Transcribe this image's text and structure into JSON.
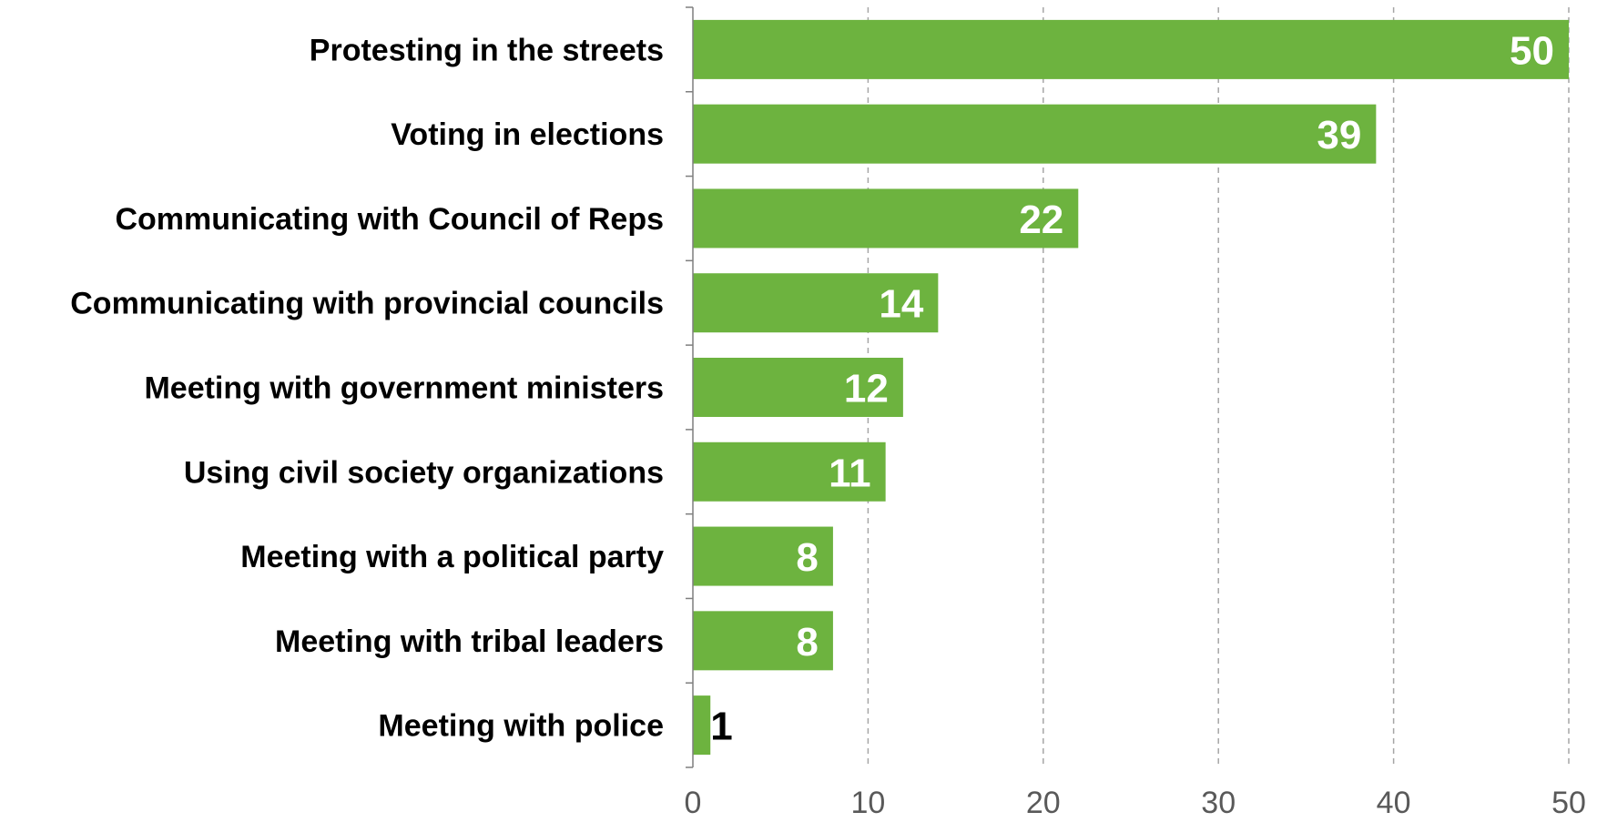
{
  "chart_data": {
    "type": "bar",
    "orientation": "horizontal",
    "categories": [
      "Protesting in the streets",
      "Voting in elections",
      "Communicating with Council of Reps",
      "Communicating with provincial councils",
      "Meeting with government ministers",
      "Using civil society organizations",
      "Meeting with a political party",
      "Meeting with tribal leaders",
      "Meeting with police"
    ],
    "values": [
      50,
      39,
      22,
      14,
      12,
      11,
      8,
      8,
      1
    ],
    "value_labels": [
      "50",
      "39",
      "22",
      "14",
      "12",
      "11",
      "8",
      "8",
      "1"
    ],
    "xlim": [
      0,
      50
    ],
    "xticks": [
      0,
      10,
      20,
      30,
      40,
      50
    ],
    "xtick_labels": [
      "0",
      "10",
      "20",
      "30",
      "40",
      "50"
    ],
    "grid": "vertical dashed",
    "legend": "none",
    "colors": {
      "bar": "#6db33f",
      "label_inside": "#ffffff",
      "label_outside": "#000000",
      "grid": "#a6a6a6",
      "axis": "#7f7f7f"
    }
  }
}
